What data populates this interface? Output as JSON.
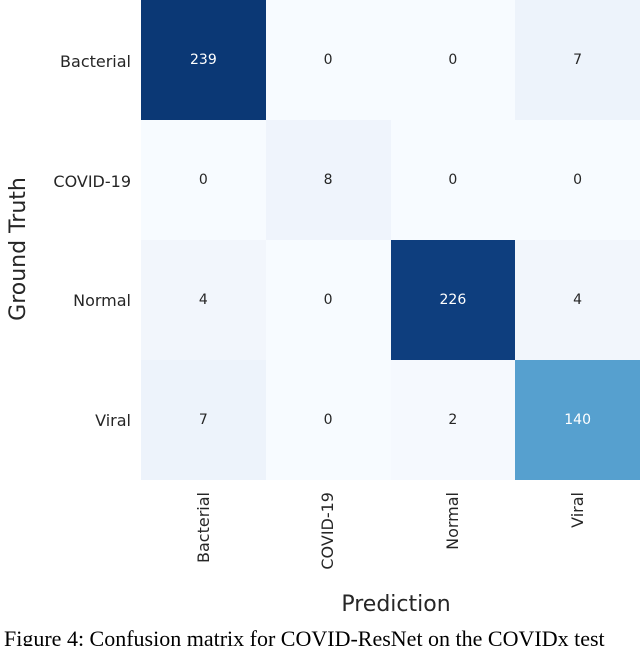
{
  "figure": {
    "xlabel": "Prediction",
    "ylabel": "Ground Truth",
    "caption": "Figure 4: Confusion matrix for COVID-ResNet on the COVIDx test"
  },
  "heatmap": {
    "row_labels": [
      "Bacterial",
      "COVID-19",
      "Normal",
      "Viral"
    ],
    "col_labels": [
      "Bacterial",
      "COVID-19",
      "Normal",
      "Viral"
    ],
    "cells": [
      {
        "value": "239",
        "bg": "#0b3875",
        "fg": "#ffffff",
        "css": "background:#0b3875;color:#ffffff"
      },
      {
        "value": "0",
        "bg": "#f7fbff",
        "fg": "#262626",
        "css": "background:#f7fbff;color:#262626"
      },
      {
        "value": "0",
        "bg": "#f7fbff",
        "fg": "#262626",
        "css": "background:#f7fbff;color:#262626"
      },
      {
        "value": "7",
        "bg": "#edf3fb",
        "fg": "#262626",
        "css": "background:#edf3fb;color:#262626"
      },
      {
        "value": "0",
        "bg": "#f7fbff",
        "fg": "#262626",
        "css": "background:#f7fbff;color:#262626"
      },
      {
        "value": "8",
        "bg": "#eff4fc",
        "fg": "#262626",
        "css": "background:#eff4fc;color:#262626"
      },
      {
        "value": "0",
        "bg": "#f7fbff",
        "fg": "#262626",
        "css": "background:#f7fbff;color:#262626"
      },
      {
        "value": "0",
        "bg": "#f7fbff",
        "fg": "#262626",
        "css": "background:#f7fbff;color:#262626"
      },
      {
        "value": "4",
        "bg": "#f2f6fc",
        "fg": "#262626",
        "css": "background:#f2f6fc;color:#262626"
      },
      {
        "value": "0",
        "bg": "#f7fbff",
        "fg": "#262626",
        "css": "background:#f7fbff;color:#262626"
      },
      {
        "value": "226",
        "bg": "#0e3e7e",
        "fg": "#ffffff",
        "css": "background:#0e3e7e;color:#ffffff"
      },
      {
        "value": "4",
        "bg": "#f2f6fc",
        "fg": "#262626",
        "css": "background:#f2f6fc;color:#262626"
      },
      {
        "value": "7",
        "bg": "#edf3fb",
        "fg": "#262626",
        "css": "background:#edf3fb;color:#262626"
      },
      {
        "value": "0",
        "bg": "#f7fbff",
        "fg": "#262626",
        "css": "background:#f7fbff;color:#262626"
      },
      {
        "value": "2",
        "bg": "#f5f9fe",
        "fg": "#262626",
        "css": "background:#f5f9fe;color:#262626"
      },
      {
        "value": "140",
        "bg": "#56a0cf",
        "fg": "#ffffff",
        "css": "background:#56a0cf;color:#ffffff"
      }
    ]
  },
  "chart_data": {
    "type": "heatmap",
    "title": "",
    "xlabel": "Prediction",
    "ylabel": "Ground Truth",
    "x_categories": [
      "Bacterial",
      "COVID-19",
      "Normal",
      "Viral"
    ],
    "y_categories": [
      "Bacterial",
      "COVID-19",
      "Normal",
      "Viral"
    ],
    "matrix": [
      [
        239,
        0,
        0,
        7
      ],
      [
        0,
        8,
        0,
        0
      ],
      [
        4,
        0,
        226,
        4
      ],
      [
        7,
        0,
        2,
        140
      ]
    ],
    "colormap": "Blues",
    "color_range_hex": [
      "#f7fbff",
      "#0b3875"
    ],
    "value_range": [
      0,
      239
    ],
    "grid": false,
    "legend": "none",
    "caption": "Figure 4: Confusion matrix for COVID-ResNet on the COVIDx test"
  }
}
